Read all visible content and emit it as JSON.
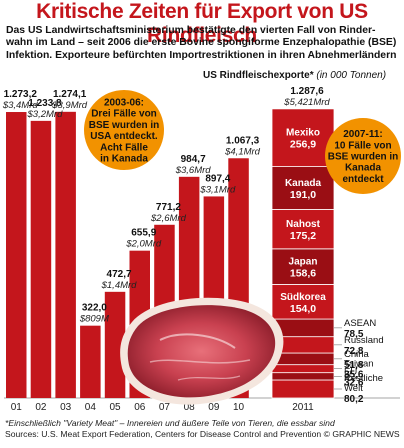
{
  "title": "Kritische Zeiten für Export von US Rindfleisch",
  "intro": "Das US Landwirtschaftsministerium bestätigte den vierten Fall von Rinder-wahn im Land – seit 2006 die erste Bovine spongiforme Enzephalopathie (BSE) Infektion. Exporteure befürchten Importrestriktionen in ihren Abnehmerländern",
  "legend": {
    "label": "US Rindfleischexporte*",
    "unit": "(in 000 Tonnen)"
  },
  "annotations": {
    "a2003": [
      "2003-06:",
      "Drei Fälle von",
      "BSE wurden in",
      "USA entdeckt.",
      "Acht Fälle",
      "in Kanada"
    ],
    "a2007": [
      "2007-11:",
      "10 Fälle von",
      "BSE wurden in",
      "Kanada",
      "entdeckt"
    ]
  },
  "footnote": "*Einschließlich \"Variety Meat\" – Innereien und äußere Teile von Tieren, die essbar sind",
  "source": "Sources: U.S. Meat Export Federation, Centers for Disease Control and Prevention © GRAPHIC NEWS",
  "chart_data": {
    "type": "bar",
    "categories": [
      "01",
      "02",
      "03",
      "04",
      "05",
      "06",
      "07",
      "08",
      "09",
      "10"
    ],
    "values": [
      1273.2,
      1233.8,
      1274.1,
      322.0,
      472.7,
      655.9,
      771.2,
      984.7,
      897.4,
      1067.3
    ],
    "value_labels": [
      "1.273,2",
      "1.233,8",
      "1.274,1",
      "322,0",
      "472,7",
      "655,9",
      "771,2",
      "984,7",
      "897,4",
      "1.067,3"
    ],
    "money_labels": [
      "$3,4Mrd",
      "$3,2Mrd",
      "$3,9Mrd",
      "$809M",
      "$1,4Mrd",
      "$2,0Mrd",
      "$2,6Mrd",
      "$3,6Mrd",
      "$3,1Mrd",
      "$4,1Mrd"
    ],
    "stacked_2011": {
      "category": "2011",
      "total_label": "1.287,6",
      "money_label": "$5,421Mrd",
      "segments": [
        {
          "name": "Mexiko",
          "value": 256.9,
          "label": "256,9"
        },
        {
          "name": "Kanada",
          "value": 191.0,
          "label": "191,0"
        },
        {
          "name": "Nahost",
          "value": 175.2,
          "label": "175,2"
        },
        {
          "name": "Japan",
          "value": 158.6,
          "label": "158,6"
        },
        {
          "name": "Südkorea",
          "value": 154.0,
          "label": "154,0"
        },
        {
          "name": "ASEAN",
          "value": 78.5,
          "label": "78,5"
        },
        {
          "name": "Russland",
          "value": 72.8,
          "label": "72,8"
        },
        {
          "name": "China",
          "value": 51.8,
          "label": "51,8"
        },
        {
          "name": "Taiwan",
          "value": 35.6,
          "label": "35,6"
        },
        {
          "name": "EU",
          "value": 32.6,
          "label": "32,6"
        },
        {
          "name": "Restliche Welt",
          "value": 80.2,
          "label": "80,2"
        }
      ]
    },
    "colors": {
      "bar": "#c4161c",
      "bar_dark": "#9a0e14",
      "highlight": "#f29200",
      "grid": "#e8b4b0"
    }
  }
}
